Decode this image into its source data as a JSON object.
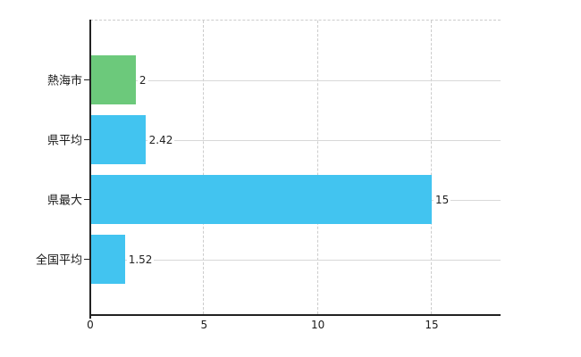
{
  "chart_data": {
    "type": "bar",
    "orientation": "horizontal",
    "title": "",
    "xlabel": "",
    "ylabel": "",
    "categories": [
      "熱海市",
      "県平均",
      "県最大",
      "全国平均"
    ],
    "values": [
      2,
      2.42,
      15,
      1.52
    ],
    "value_labels": [
      "2",
      "2.42",
      "15",
      "1.52"
    ],
    "bar_colors": [
      "#6CC97B",
      "#42C4F0",
      "#42C4F0",
      "#42C4F0"
    ],
    "xlim": [
      0,
      18
    ],
    "x_ticks": [
      0,
      5,
      10,
      15
    ],
    "x_tick_labels": [
      "0",
      "5",
      "10",
      "15"
    ],
    "grid": "vertical dashed gridlines at x ticks, dashed top border, solid gray leader line from each bar end to right edge",
    "legend": "none",
    "colors": {
      "bar_blue": "#42C4F0",
      "bar_green": "#6CC97B",
      "axis": "#222222",
      "gridline": "#cccccc",
      "leader_line": "#d8d8d8",
      "text": "#1a1a1a",
      "background": "#ffffff"
    }
  }
}
